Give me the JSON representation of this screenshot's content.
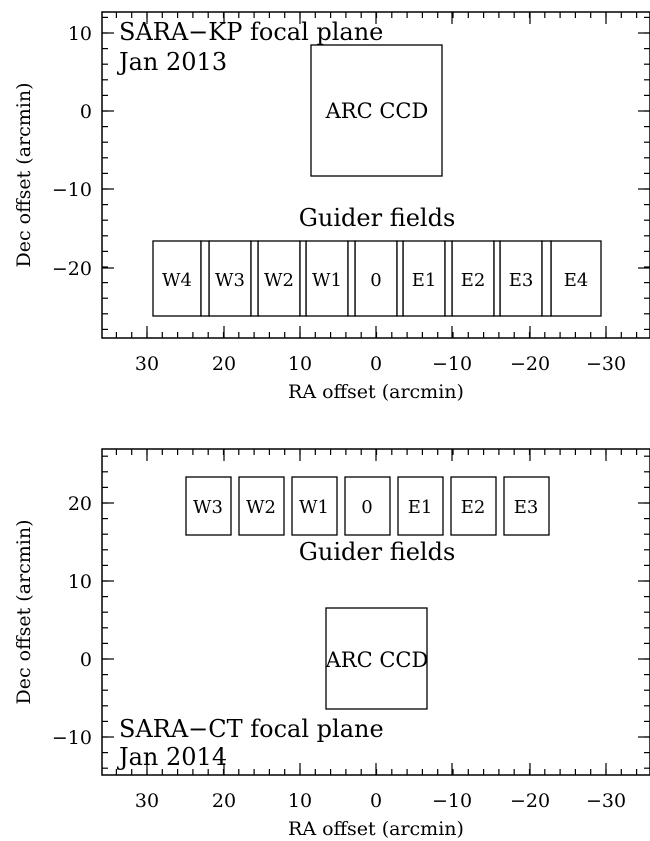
{
  "panels": [
    {
      "id": "kp",
      "caption_line1": "SARA−KP focal plane",
      "caption_line2": "Jan 2013",
      "x_axis_label": "RA offset (arcmin)",
      "y_axis_label": "Dec offset (arcmin)",
      "x_ticks": [
        "30",
        "20",
        "10",
        "0",
        "−10",
        "−20",
        "−30"
      ],
      "y_ticks": [
        "10",
        "0",
        "−10",
        "−20"
      ],
      "ccd_label": "ARC CCD",
      "guider_title": "Guider fields",
      "guider_labels": [
        "W4",
        "W3",
        "W2",
        "W1",
        "0",
        "E1",
        "E2",
        "E3",
        "E4"
      ]
    },
    {
      "id": "ct",
      "caption_line1": "SARA−CT focal plane",
      "caption_line2": "Jan 2014",
      "x_axis_label": "RA offset (arcmin)",
      "y_axis_label": "Dec offset (arcmin)",
      "x_ticks": [
        "30",
        "20",
        "10",
        "0",
        "−10",
        "−20",
        "−30"
      ],
      "y_ticks": [
        "20",
        "10",
        "0",
        "−10"
      ],
      "ccd_label": "ARC CCD",
      "guider_title": "Guider fields",
      "guider_labels": [
        "W3",
        "W2",
        "W1",
        "0",
        "E1",
        "E2",
        "E3"
      ]
    }
  ]
}
